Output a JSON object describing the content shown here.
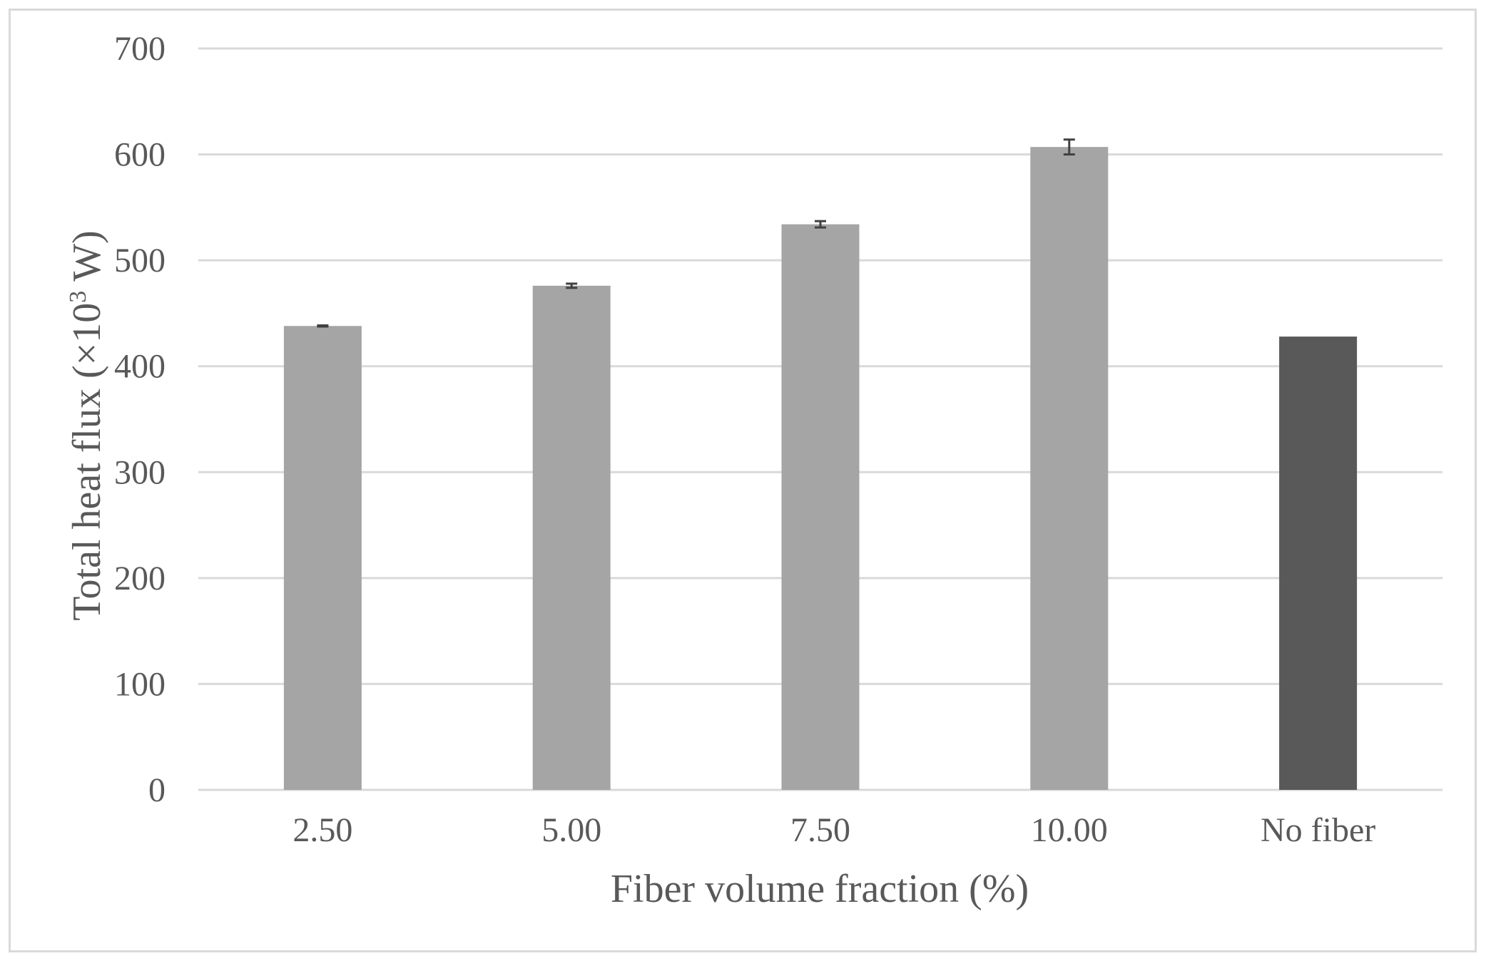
{
  "chart_data": {
    "type": "bar",
    "xlabel": "Fiber volume fraction (%)",
    "ylabel": {
      "prefix": "Total heat flux (×10",
      "superscript": "3",
      "suffix": " W)"
    },
    "categories": [
      "2.50",
      "5.00",
      "7.50",
      "10.00",
      "No fiber"
    ],
    "values": [
      438,
      476,
      534,
      607,
      428
    ],
    "errors": [
      0.5,
      2,
      3,
      7,
      null
    ],
    "bar_colors": [
      "#a5a5a5",
      "#a5a5a5",
      "#a5a5a5",
      "#a5a5a5",
      "#595959"
    ],
    "ylim": [
      0,
      700
    ],
    "yticks": [
      0,
      100,
      200,
      300,
      400,
      500,
      600,
      700
    ],
    "grid": true,
    "legend": "none"
  }
}
